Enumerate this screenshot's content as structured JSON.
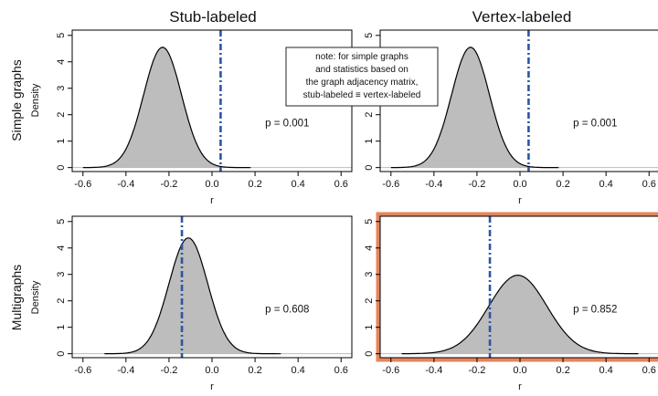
{
  "titles": {
    "col_stub": "Stub-labeled",
    "col_vertex": "Vertex-labeled",
    "row_simple": "Simple graphs",
    "row_multi": "Multigraphs",
    "density": "Density"
  },
  "note": {
    "lines": [
      "note: for simple graphs",
      "and statistics based on",
      "the graph adjacency matrix,",
      "stub-labeled ≡ vertex-labeled"
    ]
  },
  "highlight_color": "#e07040",
  "chart_data": [
    {
      "type": "area",
      "panel": "simple-stub",
      "xlabel": "r",
      "ylabel": "Density",
      "xlim": [
        -0.65,
        0.65
      ],
      "ylim": [
        -0.15,
        5.2
      ],
      "xticks": [
        "-0.6",
        "-0.4",
        "-0.2",
        "0.0",
        "0.2",
        "0.4",
        "0.6"
      ],
      "yticks": [
        "0",
        "1",
        "2",
        "3",
        "4",
        "5"
      ],
      "peak": 4.55,
      "mean": -0.23,
      "sd": 0.088,
      "range": [
        -0.6,
        0.18
      ],
      "observed": 0.04,
      "p_label": "p =  0.001"
    },
    {
      "type": "area",
      "panel": "simple-vertex",
      "xlabel": "r",
      "ylabel": "",
      "xlim": [
        -0.65,
        0.65
      ],
      "ylim": [
        -0.15,
        5.2
      ],
      "xticks": [
        "-0.6",
        "-0.4",
        "-0.2",
        "0.0",
        "0.2",
        "0.4",
        "0.6"
      ],
      "yticks": [
        "0",
        "1",
        "2",
        "3",
        "4",
        "5"
      ],
      "peak": 4.55,
      "mean": -0.23,
      "sd": 0.088,
      "range": [
        -0.6,
        0.18
      ],
      "observed": 0.04,
      "p_label": "p =  0.001"
    },
    {
      "type": "area",
      "panel": "multi-stub",
      "xlabel": "r",
      "ylabel": "Density",
      "xlim": [
        -0.65,
        0.65
      ],
      "ylim": [
        -0.15,
        5.2
      ],
      "xticks": [
        "-0.6",
        "-0.4",
        "-0.2",
        "0.0",
        "0.2",
        "0.4",
        "0.6"
      ],
      "yticks": [
        "0",
        "1",
        "2",
        "3",
        "4",
        "5"
      ],
      "peak": 4.38,
      "mean": -0.11,
      "sd": 0.09,
      "range": [
        -0.5,
        0.32
      ],
      "observed": -0.14,
      "p_label": "p =  0.608"
    },
    {
      "type": "area",
      "panel": "multi-vertex",
      "xlabel": "r",
      "ylabel": "",
      "xlim": [
        -0.65,
        0.65
      ],
      "ylim": [
        -0.15,
        5.2
      ],
      "xticks": [
        "-0.6",
        "-0.4",
        "-0.2",
        "0.0",
        "0.2",
        "0.4",
        "0.6"
      ],
      "yticks": [
        "0",
        "1",
        "2",
        "3",
        "4",
        "5"
      ],
      "peak": 2.97,
      "mean": -0.01,
      "sd": 0.135,
      "range": [
        -0.55,
        0.55
      ],
      "observed": -0.14,
      "p_label": "p =  0.852",
      "highlighted": true
    }
  ]
}
